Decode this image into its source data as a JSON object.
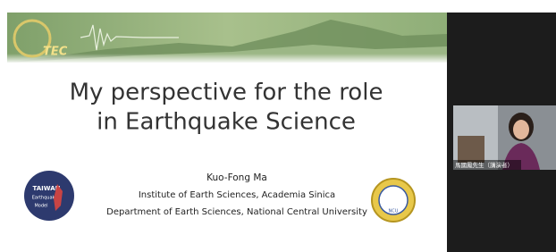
{
  "slide": {
    "logo_text": "TEC",
    "title_lines": [
      "My perspective for the role",
      "in Earthquake Science"
    ],
    "author": "Kuo-Fong Ma",
    "affiliations": [
      "Institute of Earth Sciences, Academia Sinica",
      "Department of Earth Sciences, National Central University"
    ],
    "left_logo": [
      "TAIWAN",
      "Earthquake",
      "Model"
    ],
    "right_logo": "NCU"
  },
  "video": {
    "caption": "馬國鳳先生（講演者）"
  }
}
